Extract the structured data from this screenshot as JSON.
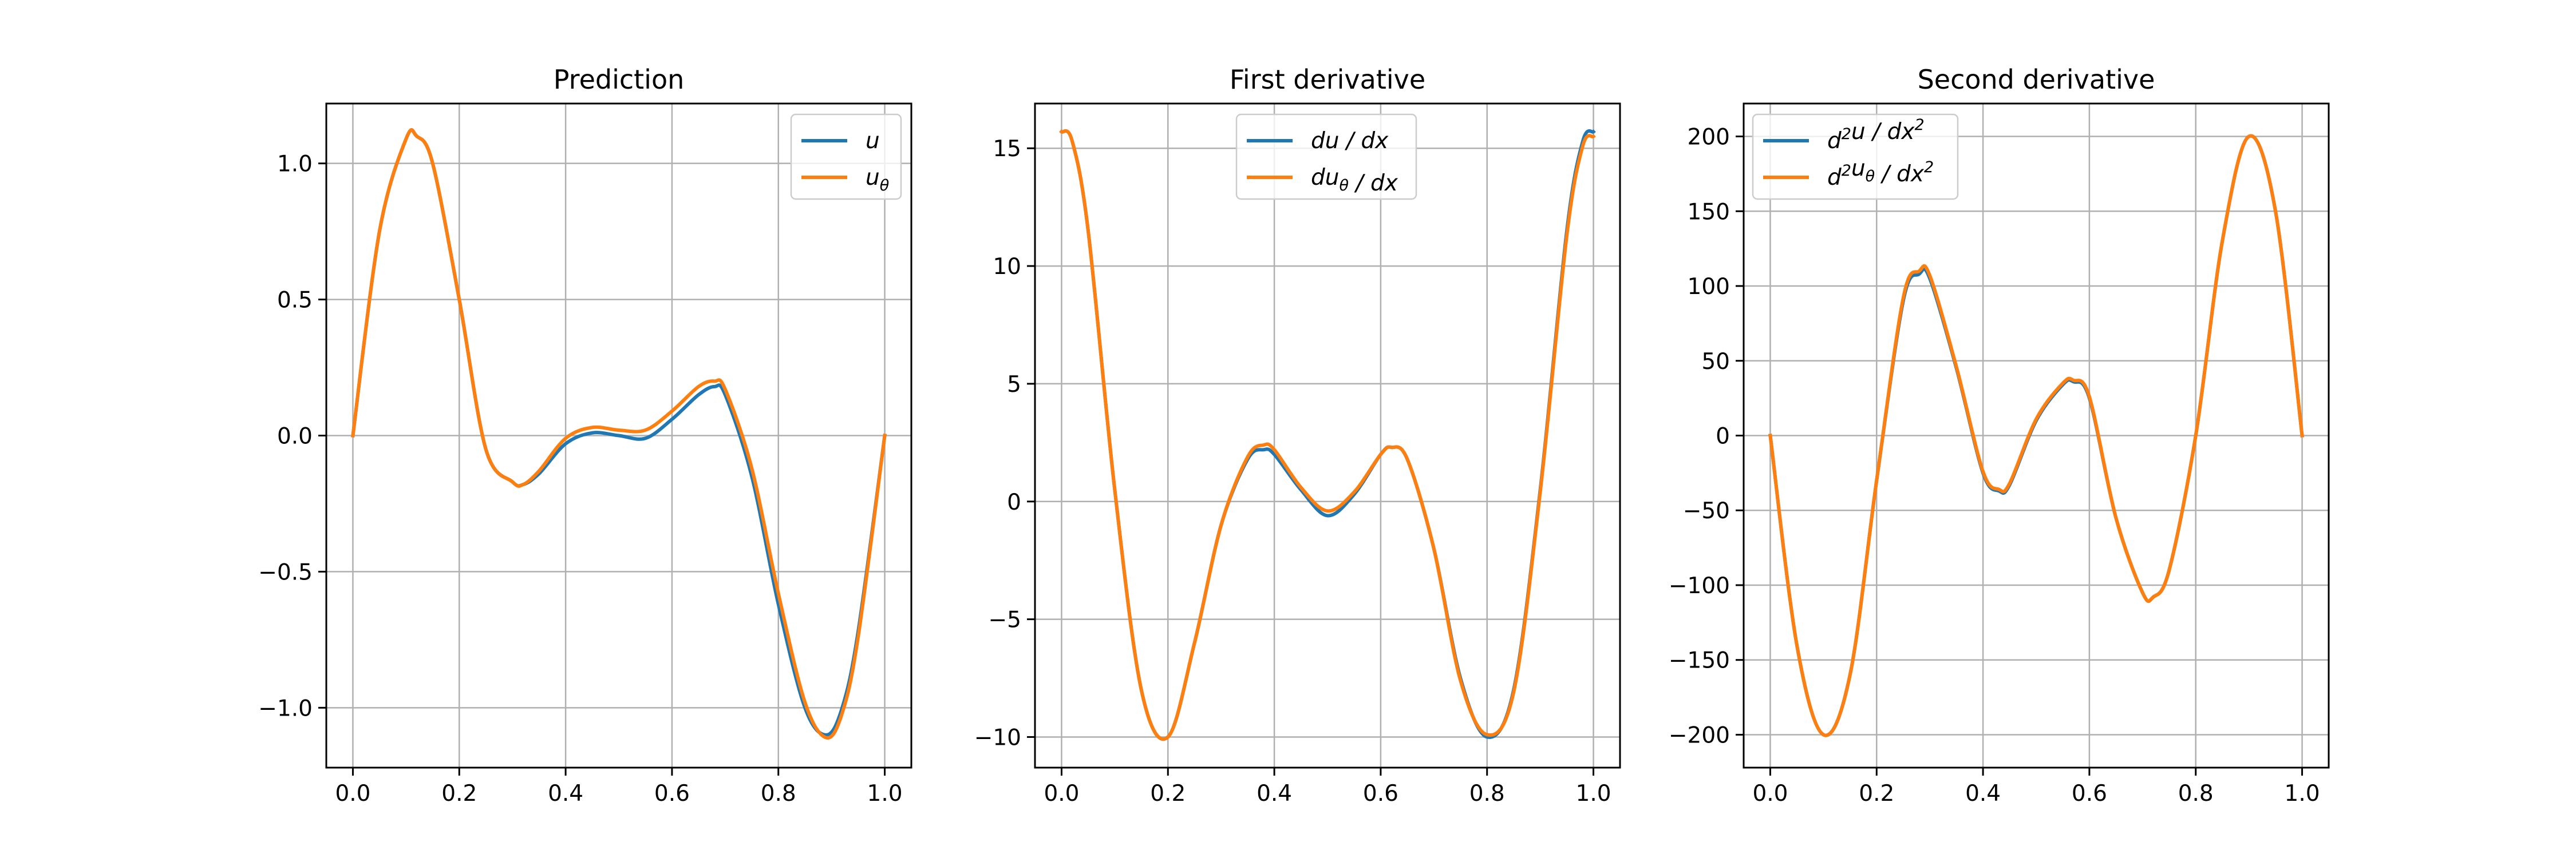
{
  "figure": {
    "background": "#ffffff"
  },
  "colors": {
    "u": "#1f77b4",
    "u_theta": "#ff7f0e",
    "grid": "#b0b0b0",
    "axes": "#000000"
  },
  "chart_data": [
    {
      "type": "line",
      "title": "Prediction",
      "xlabel": "",
      "ylabel": "",
      "xlim": [
        -0.05,
        1.05
      ],
      "ylim": [
        -1.22,
        1.22
      ],
      "grid": true,
      "legend_placement": "top-right",
      "xticks": [
        0.0,
        0.2,
        0.4,
        0.6,
        0.8,
        1.0
      ],
      "xtick_labels": [
        "0.0",
        "0.2",
        "0.4",
        "0.6",
        "0.8",
        "1.0"
      ],
      "yticks": [
        1.0,
        0.5,
        0.0,
        -0.5,
        -1.0
      ],
      "ytick_labels": [
        "1.0",
        "0.5",
        "0.0",
        "−0.5",
        "−1.0"
      ],
      "legend": [
        {
          "series": "u",
          "parts": [
            {
              "t": "u"
            }
          ]
        },
        {
          "series": "u_theta",
          "parts": [
            {
              "t": "u"
            },
            {
              "t": "θ",
              "k": "sub"
            }
          ]
        }
      ],
      "series": [
        {
          "key": "u",
          "color": "#1f77b4",
          "x": [
            0,
            0.05,
            0.1,
            0.12,
            0.15,
            0.2,
            0.25,
            0.3,
            0.32,
            0.35,
            0.4,
            0.45,
            0.5,
            0.55,
            0.6,
            0.65,
            0.68,
            0.7,
            0.75,
            0.8,
            0.85,
            0.89,
            0.92,
            0.95,
            1.0
          ],
          "y": [
            0,
            0.75,
            1.09,
            1.1,
            1.0,
            0.5,
            -0.05,
            -0.17,
            -0.18,
            -0.14,
            -0.03,
            0.01,
            0.0,
            -0.01,
            0.06,
            0.15,
            0.18,
            0.15,
            -0.15,
            -0.62,
            -1.0,
            -1.1,
            -1.0,
            -0.72,
            0
          ]
        },
        {
          "key": "u_theta",
          "color": "#ff7f0e",
          "x": [
            0,
            0.05,
            0.1,
            0.12,
            0.15,
            0.2,
            0.25,
            0.3,
            0.32,
            0.35,
            0.4,
            0.45,
            0.5,
            0.55,
            0.6,
            0.65,
            0.68,
            0.7,
            0.75,
            0.8,
            0.85,
            0.89,
            0.92,
            0.95,
            1.0
          ],
          "y": [
            0,
            0.75,
            1.09,
            1.1,
            1.0,
            0.5,
            -0.05,
            -0.17,
            -0.18,
            -0.13,
            -0.01,
            0.03,
            0.02,
            0.02,
            0.09,
            0.18,
            0.2,
            0.17,
            -0.12,
            -0.58,
            -0.98,
            -1.11,
            -1.02,
            -0.74,
            0
          ]
        }
      ]
    },
    {
      "type": "line",
      "title": "First derivative",
      "xlabel": "",
      "ylabel": "",
      "xlim": [
        -0.05,
        1.05
      ],
      "ylim": [
        -11.3,
        16.9
      ],
      "grid": true,
      "legend_placement": "top-center",
      "xticks": [
        0.0,
        0.2,
        0.4,
        0.6,
        0.8,
        1.0
      ],
      "xtick_labels": [
        "0.0",
        "0.2",
        "0.4",
        "0.6",
        "0.8",
        "1.0"
      ],
      "yticks": [
        15,
        10,
        5,
        0,
        -5,
        -10
      ],
      "ytick_labels": [
        "15",
        "10",
        "5",
        "0",
        "−5",
        "−10"
      ],
      "legend": [
        {
          "series": "u",
          "parts": [
            {
              "t": "du / dx"
            }
          ]
        },
        {
          "series": "u_theta",
          "parts": [
            {
              "t": "du"
            },
            {
              "t": "θ",
              "k": "sub"
            },
            {
              "t": " / dx"
            }
          ]
        }
      ],
      "series": [
        {
          "key": "u",
          "color": "#1f77b4",
          "x": [
            0,
            0.02,
            0.05,
            0.1,
            0.15,
            0.2,
            0.25,
            0.3,
            0.35,
            0.38,
            0.4,
            0.45,
            0.5,
            0.55,
            0.6,
            0.62,
            0.65,
            0.7,
            0.75,
            0.8,
            0.85,
            0.9,
            0.95,
            0.98,
            1.0
          ],
          "y": [
            15.7,
            15.3,
            11.5,
            0.5,
            -8.0,
            -10.0,
            -6.0,
            -1.0,
            1.8,
            2.2,
            2.0,
            0.5,
            -0.6,
            0.3,
            2.0,
            2.3,
            1.8,
            -2.0,
            -7.5,
            -10.0,
            -8.0,
            0.5,
            11.5,
            15.3,
            15.7
          ]
        },
        {
          "key": "u_theta",
          "color": "#ff7f0e",
          "x": [
            0,
            0.02,
            0.05,
            0.1,
            0.15,
            0.2,
            0.25,
            0.3,
            0.35,
            0.38,
            0.4,
            0.45,
            0.5,
            0.55,
            0.6,
            0.62,
            0.65,
            0.7,
            0.75,
            0.8,
            0.85,
            0.9,
            0.95,
            0.98,
            1.0
          ],
          "y": [
            15.7,
            15.3,
            11.5,
            0.5,
            -8.0,
            -10.0,
            -6.0,
            -1.0,
            1.9,
            2.4,
            2.2,
            0.6,
            -0.4,
            0.4,
            2.0,
            2.3,
            1.8,
            -2.0,
            -7.6,
            -9.9,
            -8.1,
            0.4,
            11.3,
            15.1,
            15.5
          ]
        }
      ]
    },
    {
      "type": "line",
      "title": "Second derivative",
      "xlabel": "",
      "ylabel": "",
      "xlim": [
        -0.05,
        1.05
      ],
      "ylim": [
        -222,
        222
      ],
      "grid": true,
      "legend_placement": "top-left",
      "xticks": [
        0.0,
        0.2,
        0.4,
        0.6,
        0.8,
        1.0
      ],
      "xtick_labels": [
        "0.0",
        "0.2",
        "0.4",
        "0.6",
        "0.8",
        "1.0"
      ],
      "yticks": [
        200,
        150,
        100,
        50,
        0,
        -50,
        -100,
        -150,
        -200
      ],
      "ytick_labels": [
        "200",
        "150",
        "100",
        "50",
        "0",
        "−50",
        "−100",
        "−150",
        "−200"
      ],
      "legend": [
        {
          "series": "u",
          "parts": [
            {
              "t": "d"
            },
            {
              "t": "2",
              "k": "sup"
            },
            {
              "t": "u / dx"
            },
            {
              "t": "2",
              "k": "sup"
            }
          ]
        },
        {
          "series": "u_theta",
          "parts": [
            {
              "t": "d"
            },
            {
              "t": "2",
              "k": "sup"
            },
            {
              "t": "u"
            },
            {
              "t": "θ",
              "k": "sub"
            },
            {
              "t": " / dx"
            },
            {
              "t": "2",
              "k": "sup"
            }
          ]
        }
      ],
      "series": [
        {
          "key": "u",
          "color": "#1f77b4",
          "x": [
            0,
            0.05,
            0.1,
            0.15,
            0.2,
            0.25,
            0.28,
            0.3,
            0.35,
            0.4,
            0.43,
            0.45,
            0.5,
            0.55,
            0.57,
            0.6,
            0.65,
            0.7,
            0.72,
            0.75,
            0.8,
            0.85,
            0.9,
            0.95,
            1.0
          ],
          "y": [
            0,
            -140,
            -200,
            -160,
            -30,
            90,
            108,
            105,
            45,
            -25,
            -37,
            -33,
            10,
            34,
            36,
            25,
            -55,
            -105,
            -108,
            -90,
            0,
            130,
            200,
            150,
            0
          ]
        },
        {
          "key": "u_theta",
          "color": "#ff7f0e",
          "x": [
            0,
            0.05,
            0.1,
            0.15,
            0.2,
            0.25,
            0.28,
            0.3,
            0.35,
            0.4,
            0.43,
            0.45,
            0.5,
            0.55,
            0.57,
            0.6,
            0.65,
            0.7,
            0.72,
            0.75,
            0.8,
            0.85,
            0.9,
            0.95,
            1.0
          ],
          "y": [
            0,
            -140,
            -200,
            -160,
            -30,
            92,
            110,
            107,
            46,
            -24,
            -36,
            -32,
            11,
            35,
            37,
            26,
            -55,
            -105,
            -108,
            -90,
            0,
            130,
            200,
            150,
            0
          ]
        }
      ]
    }
  ]
}
